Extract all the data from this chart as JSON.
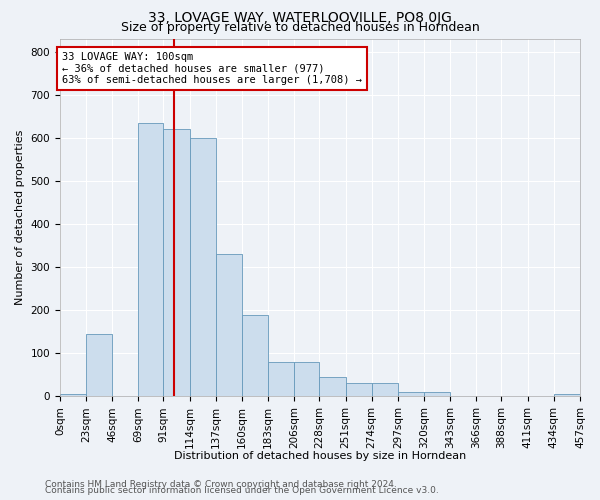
{
  "title": "33, LOVAGE WAY, WATERLOOVILLE, PO8 0JG",
  "subtitle": "Size of property relative to detached houses in Horndean",
  "xlabel": "Distribution of detached houses by size in Horndean",
  "ylabel": "Number of detached properties",
  "footer_line1": "Contains HM Land Registry data © Crown copyright and database right 2024.",
  "footer_line2": "Contains public sector information licensed under the Open Government Licence v3.0.",
  "bar_color": "#ccdded",
  "bar_edge_color": "#6699bb",
  "red_line_x": 100,
  "annotation_text": "33 LOVAGE WAY: 100sqm\n← 36% of detached houses are smaller (977)\n63% of semi-detached houses are larger (1,708) →",
  "annotation_box_color": "#ffffff",
  "annotation_box_edge": "#cc0000",
  "bin_edges": [
    0,
    23,
    46,
    69,
    91,
    114,
    137,
    160,
    183,
    206,
    228,
    251,
    274,
    297,
    320,
    343,
    366,
    388,
    411,
    434,
    457
  ],
  "bar_heights": [
    5,
    145,
    0,
    635,
    620,
    600,
    330,
    190,
    80,
    80,
    45,
    30,
    30,
    10,
    10,
    0,
    0,
    0,
    0,
    5
  ],
  "ylim": [
    0,
    830
  ],
  "yticks": [
    0,
    100,
    200,
    300,
    400,
    500,
    600,
    700,
    800
  ],
  "background_color": "#eef2f7",
  "grid_color": "#ffffff",
  "title_fontsize": 10,
  "subtitle_fontsize": 9,
  "axis_label_fontsize": 8,
  "tick_fontsize": 7.5,
  "footer_fontsize": 6.5
}
